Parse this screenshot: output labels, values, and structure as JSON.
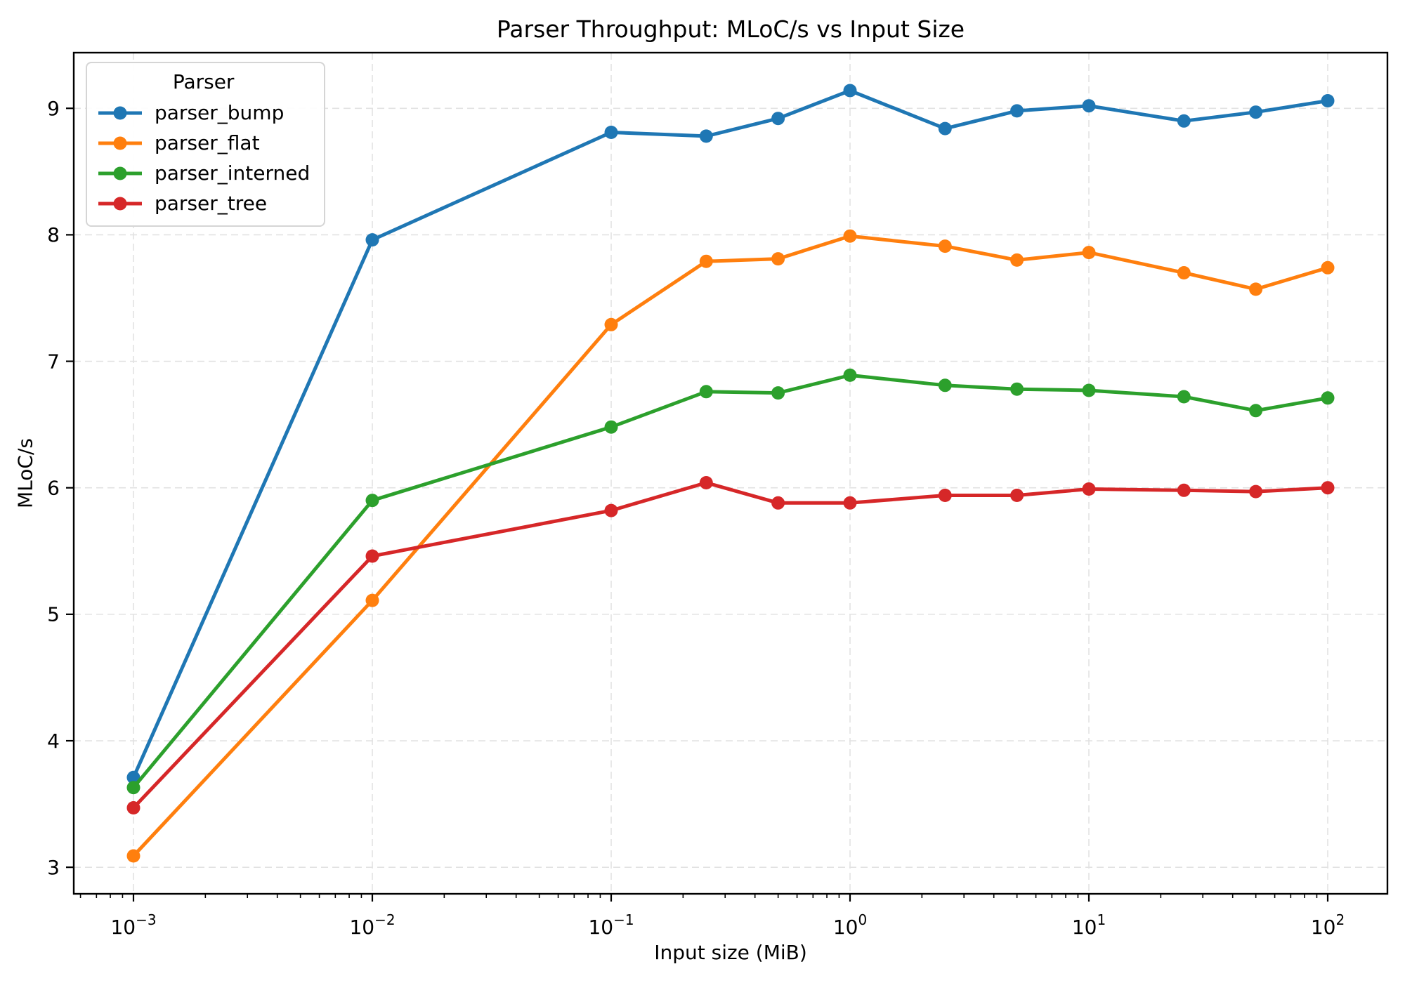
{
  "chart_data": {
    "type": "line",
    "title": "Parser Throughput: MLoC/s vs Input Size",
    "xlabel": "Input size (MiB)",
    "ylabel": "MLoC/s",
    "x_scale": "log",
    "grid": true,
    "background": "#ffffff",
    "grid_color": "#e2e2e2",
    "axis_color": "#000000",
    "legend": {
      "title": "Parser",
      "position": "upper-left"
    },
    "x_tick_exponents": [
      -3,
      -2,
      -1,
      0,
      1,
      2
    ],
    "y_ticks": [
      3,
      4,
      5,
      6,
      7,
      8,
      9
    ],
    "xlim_exponents": [
      -3.25,
      2.25
    ],
    "ylim": [
      2.79,
      9.44
    ],
    "x": [
      0.001,
      0.01,
      0.1,
      0.25,
      0.5,
      1,
      2.5,
      5,
      10,
      25,
      50,
      100
    ],
    "series": [
      {
        "name": "parser_bump",
        "color": "#1f77b4",
        "values": [
          3.71,
          7.96,
          8.81,
          8.78,
          8.92,
          9.14,
          8.84,
          8.98,
          9.02,
          8.9,
          8.97,
          9.06
        ]
      },
      {
        "name": "parser_flat",
        "color": "#ff7f0e",
        "values": [
          3.09,
          5.11,
          7.29,
          7.79,
          7.81,
          7.99,
          7.91,
          7.8,
          7.86,
          7.7,
          7.57,
          7.74
        ]
      },
      {
        "name": "parser_interned",
        "color": "#2ca02c",
        "values": [
          3.63,
          5.9,
          6.48,
          6.76,
          6.75,
          6.89,
          6.81,
          6.78,
          6.77,
          6.72,
          6.61,
          6.71
        ]
      },
      {
        "name": "parser_tree",
        "color": "#d62728",
        "values": [
          3.47,
          5.46,
          5.82,
          6.04,
          5.88,
          5.88,
          5.94,
          5.94,
          5.99,
          5.98,
          5.97,
          6.0
        ]
      }
    ]
  }
}
